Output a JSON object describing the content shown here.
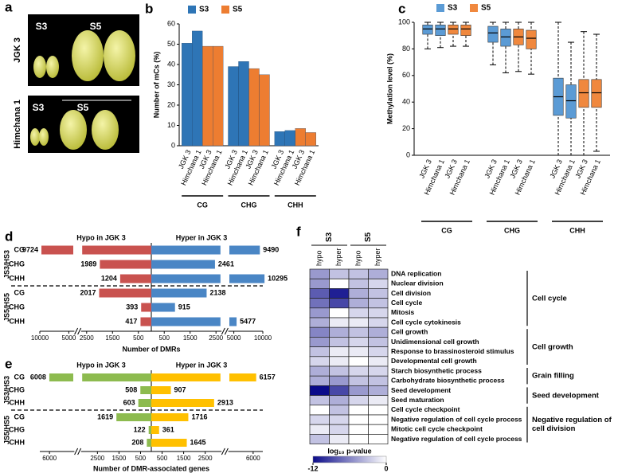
{
  "chart_data": [
    {
      "type": "photo",
      "panel": "a",
      "rows": [
        "JGK 3",
        "Himchana 1"
      ],
      "stages": [
        "S3",
        "S5"
      ]
    },
    {
      "type": "bar",
      "panel": "b",
      "ylabel": "Number of mCs (%)",
      "groups": [
        "CG",
        "CHG",
        "CHH"
      ],
      "categories": [
        "JGK 3",
        "Himchana 1"
      ],
      "series": [
        {
          "name": "S3",
          "color": "#2e75b6",
          "values": [
            [
              50.5,
              56.5
            ],
            [
              39,
              41.5
            ],
            [
              7,
              7.5
            ]
          ]
        },
        {
          "name": "S5",
          "color": "#ed7d31",
          "values": [
            [
              49,
              49
            ],
            [
              38,
              35
            ],
            [
              8.5,
              6.5
            ]
          ]
        }
      ],
      "ylim": [
        0,
        60
      ],
      "yticks": [
        0,
        10,
        20,
        30,
        40,
        50,
        60
      ]
    },
    {
      "type": "box",
      "panel": "c",
      "ylabel": "Methylation level (%)",
      "groups": [
        "CG",
        "CHG",
        "CHH"
      ],
      "categories": [
        "JGK 3",
        "Himchana 1"
      ],
      "series": [
        {
          "name": "S3",
          "color": "#5b9bd5",
          "values": [
            [
              {
                "min": 80,
                "q1": 91,
                "median": 95,
                "q3": 98,
                "max": 100
              },
              {
                "min": 81,
                "q1": 90,
                "median": 95,
                "q3": 98,
                "max": 100
              }
            ],
            [
              {
                "min": 68,
                "q1": 85,
                "median": 92,
                "q3": 97,
                "max": 100
              },
              {
                "min": 62,
                "q1": 82,
                "median": 89,
                "q3": 95,
                "max": 100
              }
            ],
            [
              {
                "min": 0,
                "q1": 30,
                "median": 44,
                "q3": 58,
                "max": 100
              },
              {
                "min": 0,
                "q1": 28,
                "median": 41,
                "q3": 53,
                "max": 85
              }
            ]
          ]
        },
        {
          "name": "S5",
          "color": "#f0883e",
          "values": [
            [
              {
                "min": 82,
                "q1": 91,
                "median": 95,
                "q3": 98,
                "max": 100
              },
              {
                "min": 82,
                "q1": 90,
                "median": 95,
                "q3": 98,
                "max": 100
              }
            ],
            [
              {
                "min": 63,
                "q1": 83,
                "median": 89,
                "q3": 95,
                "max": 100
              },
              {
                "min": 61,
                "q1": 80,
                "median": 88,
                "q3": 94,
                "max": 100
              }
            ],
            [
              {
                "min": 0,
                "q1": 36,
                "median": 47,
                "q3": 57,
                "max": 93
              },
              {
                "min": 3,
                "q1": 36,
                "median": 47,
                "q3": 57,
                "max": 91
              }
            ]
          ]
        }
      ],
      "ylim": [
        0,
        100
      ],
      "yticks": [
        0,
        20,
        40,
        60,
        80,
        100
      ]
    },
    {
      "type": "diverging-bar",
      "panel": "d",
      "xlabel": "Number of DMRs",
      "groups": [
        "JS3/HS3",
        "JS5/HS5"
      ],
      "categories": [
        "CG",
        "CHG",
        "CHH"
      ],
      "series": [
        {
          "name": "Hypo in JGK 3",
          "color": "#c9524f",
          "values": [
            [
              -9724,
              -1989,
              -1204
            ],
            [
              -2017,
              -393,
              -417
            ]
          ],
          "value_labels": [
            [
              "9724",
              "1989",
              "1204"
            ],
            [
              "2017",
              "393",
              "417"
            ]
          ]
        },
        {
          "name": "Hyper in JGK 3",
          "color": "#4a86c5",
          "values": [
            [
              9490,
              2461,
              10295
            ],
            [
              2138,
              915,
              5477
            ]
          ]
        }
      ],
      "xlim": [
        -10000,
        10000
      ],
      "xbreak": [
        2500,
        5000
      ],
      "xticks": [
        {
          "value": -10000,
          "label": "10000"
        },
        {
          "value": -5000,
          "label": "5000"
        },
        {
          "value": -2500,
          "label": "2500"
        },
        {
          "value": -1500,
          "label": "1500"
        },
        {
          "value": -500,
          "label": "500"
        },
        500,
        1500,
        2500,
        5000,
        10000
      ]
    },
    {
      "type": "diverging-bar",
      "panel": "e",
      "xlabel": "Number of DMR-associated genes",
      "groups": [
        "JS3/HS3",
        "JS5/HS5"
      ],
      "categories": [
        "CG",
        "CHG",
        "CHH"
      ],
      "series": [
        {
          "name": "Hypo in JGK 3",
          "color": "#8dbb4f",
          "values": [
            [
              -6008,
              -508,
              -603
            ],
            [
              -1619,
              -122,
              -208
            ]
          ],
          "value_labels": [
            [
              "6008",
              "508",
              "603"
            ],
            [
              "1619",
              "122",
              "208"
            ]
          ]
        },
        {
          "name": "Hyper in JGK 3",
          "color": "#ffc000",
          "values": [
            [
              6157,
              907,
              2913
            ],
            [
              1716,
              361,
              1645
            ]
          ]
        }
      ],
      "xlim": [
        -6500,
        6500
      ],
      "xbreak": [
        3000,
        5000
      ],
      "xticks": [
        {
          "value": -6000,
          "label": "6000"
        },
        {
          "value": -2500,
          "label": "2500"
        },
        {
          "value": -1500,
          "label": "1500"
        },
        {
          "value": -500,
          "label": "500"
        },
        500,
        1500,
        2500,
        6000
      ]
    },
    {
      "type": "heatmap",
      "panel": "f",
      "column_groups": [
        "S3",
        "S5"
      ],
      "columns": [
        "hypo",
        "hyper"
      ],
      "rows": [
        "DNA replication",
        "Nuclear division",
        "Cell division",
        "Cell cycle",
        "Mitosis",
        "Cell cycle cytokinesis",
        "Cell growth",
        "Unidimensional cell growth",
        "Response to brassinosteroid stimulus",
        "Developmental cell growth",
        "Starch biosynthetic process",
        "Carbohydrate biosynthetic process",
        "Seed development",
        "Seed maturation",
        "Cell cycle checkpoint",
        "Negative regulation of cell cycle process",
        "Mitotic cell cycle checkpoint",
        "Negative regulation of cell cycle process"
      ],
      "values": [
        [
          -5,
          -3,
          -3,
          -4
        ],
        [
          -5,
          0,
          -3,
          -2
        ],
        [
          -8,
          -11,
          -4,
          -3
        ],
        [
          -7,
          -9,
          -4,
          -3
        ],
        [
          -5,
          0,
          -2,
          -2
        ],
        [
          -4,
          -1,
          -1,
          -2
        ],
        [
          -6,
          -4,
          -3,
          -4
        ],
        [
          -5,
          -3,
          -2,
          -3
        ],
        [
          -3,
          -1,
          -1,
          -2
        ],
        [
          -2,
          -1,
          0,
          -1
        ],
        [
          -4,
          -3,
          -2,
          -2
        ],
        [
          -4,
          -5,
          -3,
          -3
        ],
        [
          -12,
          -9,
          -5,
          -4
        ],
        [
          -3,
          -4,
          -2,
          -1
        ],
        [
          0,
          -3,
          0,
          0
        ],
        [
          -2,
          -2,
          0,
          0
        ],
        [
          -1,
          -2,
          0,
          0
        ],
        [
          -3,
          -1,
          0,
          0
        ]
      ],
      "row_groups": [
        {
          "name": "Cell cycle",
          "size": 6
        },
        {
          "name": "Cell growth",
          "size": 4
        },
        {
          "name": "Grain filling",
          "size": 2
        },
        {
          "name": "Seed development",
          "size": 2
        },
        {
          "name": "Negative regulation of cell division",
          "size": 4
        }
      ],
      "colorbar_label": "log₁₀ p-value",
      "clim": [
        -12,
        0
      ],
      "cticks": [
        -12,
        0
      ],
      "colors": [
        "#0b0b8a",
        "#ffffff"
      ]
    }
  ]
}
